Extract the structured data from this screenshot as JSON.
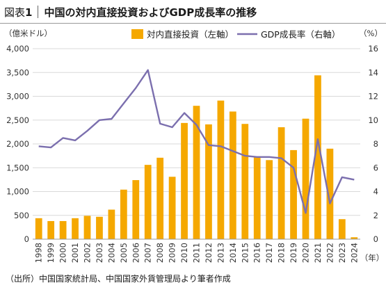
{
  "header": {
    "fig_label": "図表",
    "fig_num": "1",
    "title": "中国の対内直接投資およびGDP成長率の推移"
  },
  "footer": {
    "source": "（出所）中国国家統計局、中国国家外貨管理局より筆者作成"
  },
  "chart_data": {
    "type": "bar",
    "categories": [
      "1998",
      "1999",
      "2000",
      "2001",
      "2002",
      "2003",
      "2004",
      "2005",
      "2006",
      "2007",
      "2008",
      "2009",
      "2010",
      "2011",
      "2012",
      "2013",
      "2014",
      "2015",
      "2016",
      "2017",
      "2018",
      "2019",
      "2020",
      "2021",
      "2022",
      "2023",
      "2024"
    ],
    "left_unit": "（億米ドル）",
    "right_unit": "（%）",
    "x_unit": "（年）",
    "ylim_left": [
      0,
      4000
    ],
    "yticks_left": [
      "0",
      "500",
      "1,000",
      "1,500",
      "2,000",
      "2,500",
      "3,000",
      "3,500",
      "4,000"
    ],
    "ylim_right": [
      0,
      16
    ],
    "yticks_right": [
      "0",
      "2",
      "4",
      "6",
      "8",
      "10",
      "12",
      "14",
      "16"
    ],
    "grid": true,
    "legend_position": "top",
    "series": [
      {
        "name": "対内直接投資（左軸）",
        "type": "bar",
        "axis": "left",
        "color": "#f5a800",
        "values": [
          440,
          380,
          380,
          440,
          490,
          470,
          620,
          1040,
          1240,
          1560,
          1710,
          1310,
          2440,
          2800,
          2410,
          2910,
          2680,
          2420,
          1740,
          1660,
          2350,
          1870,
          2530,
          3440,
          1900,
          420,
          40
        ]
      },
      {
        "name": "GDP成長率（右軸）",
        "type": "line",
        "axis": "right",
        "color": "#7b6fae",
        "values": [
          7.8,
          7.7,
          8.5,
          8.3,
          9.1,
          10.0,
          10.1,
          11.4,
          12.7,
          14.2,
          9.7,
          9.4,
          10.6,
          9.6,
          7.9,
          7.8,
          7.4,
          7.0,
          6.9,
          6.9,
          6.8,
          6.0,
          2.2,
          8.4,
          3.0,
          5.2,
          5.0
        ]
      }
    ]
  }
}
